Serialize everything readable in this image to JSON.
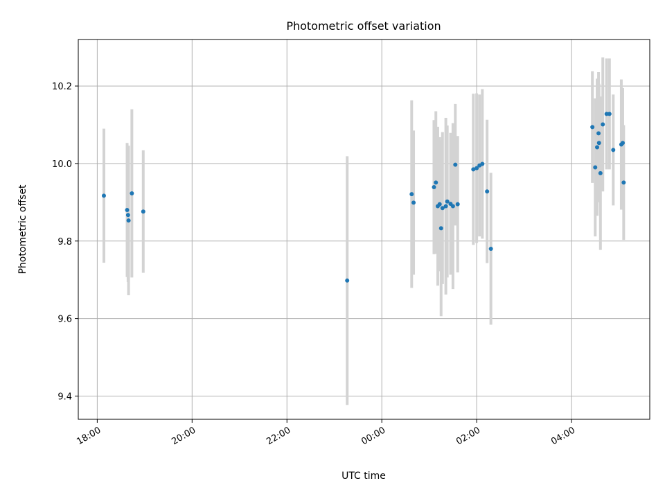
{
  "chart_data": {
    "type": "scatter",
    "title": "Photometric offset variation",
    "xlabel": "UTC time",
    "ylabel": "Photometric offset",
    "x_unit": "hours since 18:00 UTC",
    "xlim": [
      -0.4,
      11.65
    ],
    "ylim": [
      9.34,
      10.32
    ],
    "grid": true,
    "x_ticks": [
      {
        "value": 0,
        "label": "18:00"
      },
      {
        "value": 2,
        "label": "20:00"
      },
      {
        "value": 4,
        "label": "22:00"
      },
      {
        "value": 6,
        "label": "00:00"
      },
      {
        "value": 8,
        "label": "02:00"
      },
      {
        "value": 10,
        "label": "04:00"
      }
    ],
    "y_ticks": [
      {
        "value": 9.4,
        "label": "9.4"
      },
      {
        "value": 9.6,
        "label": "9.6"
      },
      {
        "value": 9.8,
        "label": "9.8"
      },
      {
        "value": 10.0,
        "label": "10.0"
      },
      {
        "value": 10.2,
        "label": "10.2"
      }
    ],
    "series": [
      {
        "name": "Photometric offset",
        "marker_color": "#1f77b4",
        "errorbar_color": "#d3d3d3",
        "points": [
          {
            "x": 0.14,
            "y": 9.917,
            "err": 0.173
          },
          {
            "x": 0.63,
            "y": 9.88,
            "err": 0.173
          },
          {
            "x": 0.65,
            "y": 9.867,
            "err": 0.173
          },
          {
            "x": 0.66,
            "y": 9.853,
            "err": 0.193
          },
          {
            "x": 0.73,
            "y": 9.923,
            "err": 0.217
          },
          {
            "x": 0.97,
            "y": 9.876,
            "err": 0.158
          },
          {
            "x": 5.27,
            "y": 9.698,
            "err": 0.321
          },
          {
            "x": 6.63,
            "y": 9.921,
            "err": 0.242
          },
          {
            "x": 6.67,
            "y": 9.899,
            "err": 0.186
          },
          {
            "x": 7.1,
            "y": 9.939,
            "err": 0.173
          },
          {
            "x": 7.14,
            "y": 9.951,
            "err": 0.184
          },
          {
            "x": 7.18,
            "y": 9.89,
            "err": 0.205
          },
          {
            "x": 7.22,
            "y": 9.895,
            "err": 0.173
          },
          {
            "x": 7.25,
            "y": 9.833,
            "err": 0.227
          },
          {
            "x": 7.28,
            "y": 9.885,
            "err": 0.196
          },
          {
            "x": 7.35,
            "y": 9.89,
            "err": 0.228
          },
          {
            "x": 7.38,
            "y": 9.902,
            "err": 0.196
          },
          {
            "x": 7.45,
            "y": 9.896,
            "err": 0.183
          },
          {
            "x": 7.5,
            "y": 9.89,
            "err": 0.214
          },
          {
            "x": 7.55,
            "y": 9.997,
            "err": 0.157
          },
          {
            "x": 7.6,
            "y": 9.895,
            "err": 0.176
          },
          {
            "x": 7.93,
            "y": 9.985,
            "err": 0.195
          },
          {
            "x": 8.0,
            "y": 9.988,
            "err": 0.193
          },
          {
            "x": 8.06,
            "y": 9.995,
            "err": 0.183
          },
          {
            "x": 8.12,
            "y": 9.999,
            "err": 0.193
          },
          {
            "x": 8.22,
            "y": 9.928,
            "err": 0.185
          },
          {
            "x": 8.3,
            "y": 9.78,
            "err": 0.196
          },
          {
            "x": 10.44,
            "y": 10.094,
            "err": 0.144
          },
          {
            "x": 10.5,
            "y": 9.99,
            "err": 0.178
          },
          {
            "x": 10.54,
            "y": 10.042,
            "err": 0.177
          },
          {
            "x": 10.57,
            "y": 10.078,
            "err": 0.158
          },
          {
            "x": 10.58,
            "y": 10.053,
            "err": 0.153
          },
          {
            "x": 10.61,
            "y": 9.975,
            "err": 0.198
          },
          {
            "x": 10.66,
            "y": 10.101,
            "err": 0.173
          },
          {
            "x": 10.74,
            "y": 10.128,
            "err": 0.143
          },
          {
            "x": 10.8,
            "y": 10.128,
            "err": 0.143
          },
          {
            "x": 10.88,
            "y": 10.035,
            "err": 0.143
          },
          {
            "x": 11.05,
            "y": 10.049,
            "err": 0.168
          },
          {
            "x": 11.08,
            "y": 10.053,
            "err": 0.142
          },
          {
            "x": 11.1,
            "y": 9.951,
            "err": 0.148
          }
        ]
      }
    ]
  }
}
